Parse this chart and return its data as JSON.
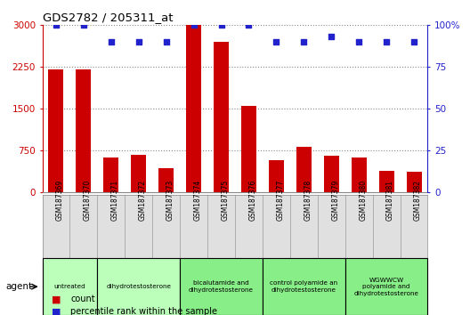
{
  "title": "GDS2782 / 205311_at",
  "samples": [
    "GSM187369",
    "GSM187370",
    "GSM187371",
    "GSM187372",
    "GSM187373",
    "GSM187374",
    "GSM187375",
    "GSM187376",
    "GSM187377",
    "GSM187378",
    "GSM187379",
    "GSM187380",
    "GSM187381",
    "GSM187382"
  ],
  "counts": [
    2200,
    2200,
    620,
    670,
    430,
    3000,
    2700,
    1550,
    580,
    820,
    660,
    620,
    390,
    370
  ],
  "percentiles": [
    100,
    100,
    90,
    90,
    90,
    100,
    100,
    100,
    90,
    90,
    93,
    90,
    90,
    90
  ],
  "bar_color": "#cc0000",
  "dot_color": "#2222cc",
  "ylim_left": [
    0,
    3000
  ],
  "ylim_right": [
    0,
    100
  ],
  "yticks_left": [
    0,
    750,
    1500,
    2250,
    3000
  ],
  "ytick_labels_left": [
    "0",
    "750",
    "1500",
    "2250",
    "3000"
  ],
  "yticks_right": [
    0,
    25,
    50,
    75,
    100
  ],
  "ytick_labels_right": [
    "0",
    "25",
    "50",
    "75",
    "100%"
  ],
  "groups": [
    {
      "label": "untreated",
      "indices": [
        0,
        1
      ],
      "color": "#bbffbb"
    },
    {
      "label": "dihydrotestosterone",
      "indices": [
        2,
        3,
        4
      ],
      "color": "#bbffbb"
    },
    {
      "label": "bicalutamide and\ndihydrotestosterone",
      "indices": [
        5,
        6,
        7
      ],
      "color": "#88ee88"
    },
    {
      "label": "control polyamide an\ndihydrotestosterone",
      "indices": [
        8,
        9,
        10
      ],
      "color": "#88ee88"
    },
    {
      "label": "WGWWCW\npolyamide and\ndihydrotestosterone",
      "indices": [
        11,
        12,
        13
      ],
      "color": "#88ee88"
    }
  ],
  "agent_label": "agent",
  "legend_count_label": "count",
  "legend_pct_label": "percentile rank within the sample",
  "grid_color": "#888888",
  "bar_width": 0.55
}
